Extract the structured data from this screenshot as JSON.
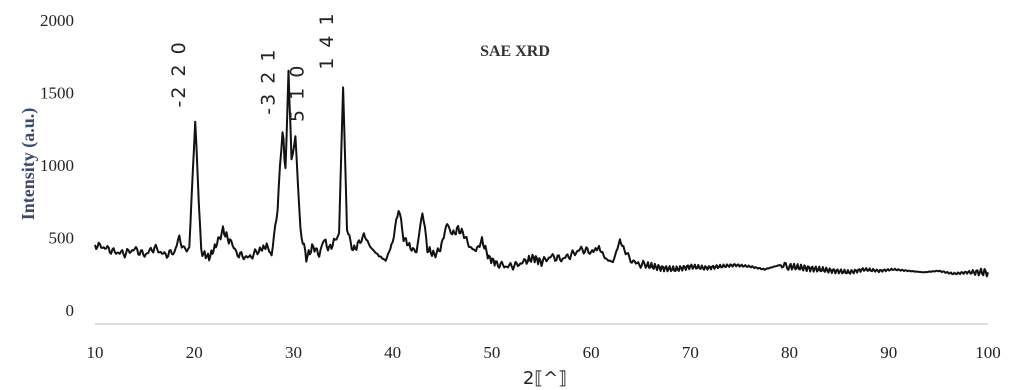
{
  "chart_data": {
    "type": "line",
    "title": "SAE XRD",
    "xlabel": "2⟦^⟧",
    "ylabel": "Intensity (a.u.)",
    "xlim": [
      10,
      100
    ],
    "ylim": [
      0,
      2000
    ],
    "xticks": [
      10,
      20,
      30,
      40,
      50,
      60,
      70,
      80,
      90,
      100
    ],
    "yticks": [
      0,
      500,
      1000,
      1500,
      2000
    ],
    "ytick_labels": [
      "0",
      "500",
      "1000",
      "1500",
      "2000"
    ],
    "grid": false,
    "legend": "none",
    "line_color": "#111111",
    "annotations": [
      {
        "text": "-2 2 0",
        "x": 20.1,
        "y": 1300
      },
      {
        "text": "-3 2 1",
        "x": 28.9,
        "y": 1250
      },
      {
        "text": "5 1 0",
        "x": 30.2,
        "y": 1200
      },
      {
        "text": "1 4 1",
        "x": 35.0,
        "y": 1560
      }
    ],
    "series": [
      {
        "points": [
          [
            10,
            450
          ],
          [
            11,
            430
          ],
          [
            12,
            400
          ],
          [
            13,
            390
          ],
          [
            14,
            420
          ],
          [
            15,
            380
          ],
          [
            16,
            430
          ],
          [
            17,
            380
          ],
          [
            18,
            400
          ],
          [
            18.5,
            500
          ],
          [
            19,
            410
          ],
          [
            19.5,
            430
          ],
          [
            20.1,
            1300
          ],
          [
            20.7,
            400
          ],
          [
            21.5,
            360
          ],
          [
            22.3,
            460
          ],
          [
            22.9,
            550
          ],
          [
            23.6,
            470
          ],
          [
            24.5,
            380
          ],
          [
            25.5,
            360
          ],
          [
            26.5,
            410
          ],
          [
            27.3,
            440
          ],
          [
            27.8,
            380
          ],
          [
            28.4,
            700
          ],
          [
            28.9,
            1250
          ],
          [
            29.2,
            960
          ],
          [
            29.5,
            1640
          ],
          [
            29.8,
            1050
          ],
          [
            30.2,
            1200
          ],
          [
            30.7,
            550
          ],
          [
            31.3,
            360
          ],
          [
            32,
            440
          ],
          [
            32.6,
            380
          ],
          [
            33,
            490
          ],
          [
            33.6,
            420
          ],
          [
            34.2,
            480
          ],
          [
            34.6,
            520
          ],
          [
            35.0,
            1560
          ],
          [
            35.4,
            560
          ],
          [
            36,
            410
          ],
          [
            36.6,
            460
          ],
          [
            37.1,
            520
          ],
          [
            37.8,
            430
          ],
          [
            38.5,
            380
          ],
          [
            39.3,
            340
          ],
          [
            40,
            470
          ],
          [
            40.6,
            700
          ],
          [
            41.1,
            500
          ],
          [
            41.8,
            430
          ],
          [
            42.4,
            400
          ],
          [
            43,
            680
          ],
          [
            43.5,
            420
          ],
          [
            44.2,
            380
          ],
          [
            44.8,
            420
          ],
          [
            45.5,
            600
          ],
          [
            46,
            520
          ],
          [
            46.6,
            560
          ],
          [
            47.2,
            520
          ],
          [
            47.8,
            430
          ],
          [
            48.4,
            410
          ],
          [
            49,
            480
          ],
          [
            49.7,
            360
          ],
          [
            50.5,
            320
          ],
          [
            51.5,
            300
          ],
          [
            52.5,
            310
          ],
          [
            53.5,
            340
          ],
          [
            54.2,
            360
          ],
          [
            55,
            330
          ],
          [
            56,
            370
          ],
          [
            57,
            350
          ],
          [
            58,
            380
          ],
          [
            59,
            420
          ],
          [
            60,
            400
          ],
          [
            60.8,
            430
          ],
          [
            61.5,
            350
          ],
          [
            62.2,
            330
          ],
          [
            62.9,
            480
          ],
          [
            63.6,
            380
          ],
          [
            64.5,
            320
          ],
          [
            65.5,
            310
          ],
          [
            67,
            290
          ],
          [
            68.5,
            280
          ],
          [
            70,
            300
          ],
          [
            71.5,
            290
          ],
          [
            73,
            300
          ],
          [
            74.5,
            310
          ],
          [
            76,
            300
          ],
          [
            77.5,
            280
          ],
          [
            79,
            310
          ],
          [
            80,
            300
          ],
          [
            81.5,
            290
          ],
          [
            83,
            280
          ],
          [
            84.5,
            270
          ],
          [
            86,
            260
          ],
          [
            87.5,
            280
          ],
          [
            89,
            270
          ],
          [
            90.5,
            280
          ],
          [
            92,
            270
          ],
          [
            93.5,
            260
          ],
          [
            95,
            270
          ],
          [
            96.5,
            250
          ],
          [
            98,
            260
          ],
          [
            100,
            260
          ]
        ]
      }
    ]
  }
}
